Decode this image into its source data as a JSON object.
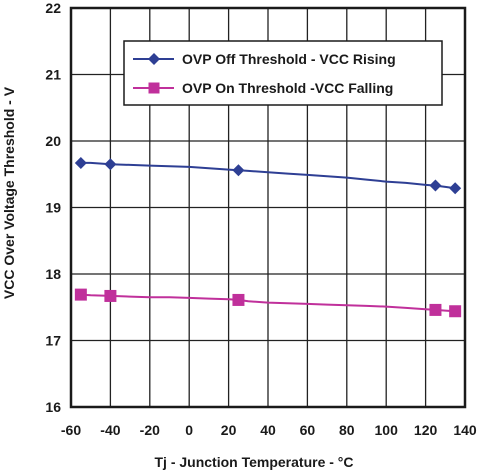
{
  "chart_data": {
    "type": "line",
    "title": "",
    "xlabel": "Tj - Junction Temperature -  °C",
    "ylabel": "VCC Over Voltage Threshold - V",
    "xlim": [
      -60,
      140
    ],
    "ylim": [
      16,
      22
    ],
    "x_ticks": [
      "-60",
      "-40",
      "-20",
      "0",
      "20",
      "40",
      "60",
      "80",
      "100",
      "120",
      "140"
    ],
    "y_ticks": [
      "16",
      "17",
      "18",
      "19",
      "20",
      "21",
      "22"
    ],
    "grid": true,
    "legend_position": "top-right",
    "series": [
      {
        "name": "OVP Off Threshold - VCC Rising",
        "color": "#2e3f94",
        "marker": "diamond",
        "x": [
          -55,
          -40,
          25,
          125,
          135
        ],
        "y": [
          19.67,
          19.65,
          19.56,
          19.33,
          19.29
        ],
        "curve_x": [
          -55,
          -50,
          -40,
          -30,
          -20,
          -10,
          0,
          10,
          20,
          25,
          30,
          40,
          50,
          60,
          70,
          80,
          90,
          100,
          110,
          120,
          125,
          130,
          135
        ],
        "curve_y": [
          19.67,
          19.67,
          19.65,
          19.64,
          19.63,
          19.62,
          19.61,
          19.59,
          19.57,
          19.56,
          19.55,
          19.53,
          19.51,
          19.49,
          19.47,
          19.45,
          19.42,
          19.39,
          19.37,
          19.34,
          19.33,
          19.31,
          19.29
        ]
      },
      {
        "name": "OVP On Threshold -VCC Falling",
        "color": "#c0309b",
        "marker": "square",
        "x": [
          -55,
          -40,
          25,
          125,
          135
        ],
        "y": [
          17.69,
          17.67,
          17.61,
          17.46,
          17.44
        ],
        "curve_x": [
          -55,
          -50,
          -40,
          -30,
          -20,
          -10,
          0,
          10,
          20,
          25,
          30,
          40,
          50,
          60,
          70,
          80,
          90,
          100,
          110,
          120,
          125,
          130,
          135
        ],
        "curve_y": [
          17.69,
          17.68,
          17.67,
          17.66,
          17.65,
          17.65,
          17.64,
          17.63,
          17.62,
          17.61,
          17.59,
          17.57,
          17.56,
          17.55,
          17.54,
          17.53,
          17.52,
          17.51,
          17.49,
          17.47,
          17.46,
          17.45,
          17.44
        ]
      }
    ]
  }
}
